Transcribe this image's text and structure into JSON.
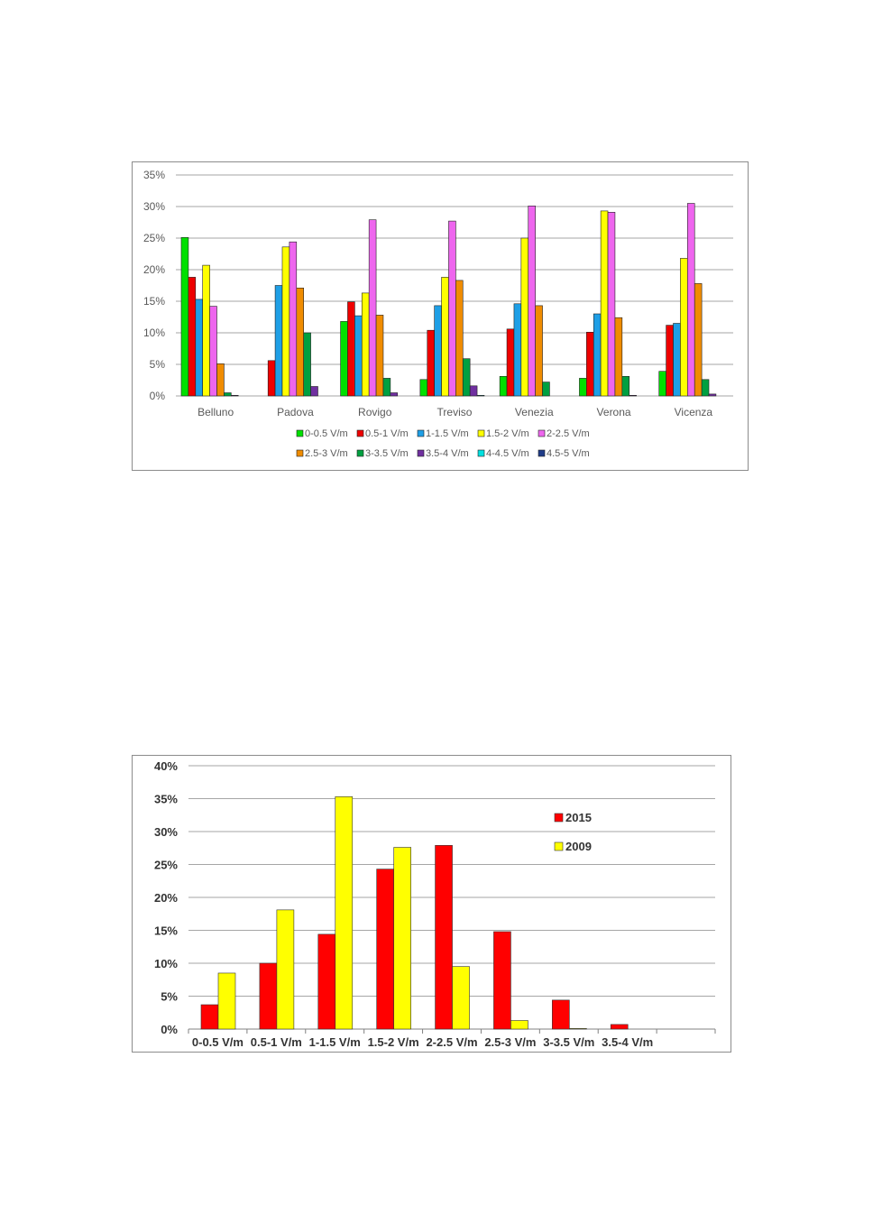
{
  "chart_data": [
    {
      "type": "bar",
      "title": "",
      "xlabel": "",
      "ylabel": "",
      "ylim": [
        0,
        35
      ],
      "y_ticks": [
        "0%",
        "5%",
        "10%",
        "15%",
        "20%",
        "25%",
        "30%",
        "35%"
      ],
      "grid": true,
      "legend_position": "bottom",
      "categories": [
        "Belluno",
        "Padova",
        "Rovigo",
        "Treviso",
        "Venezia",
        "Verona",
        "Vicenza"
      ],
      "series": [
        {
          "name": "0-0.5 V/m",
          "color": "#00e000",
          "values": [
            25.1,
            0,
            11.8,
            2.6,
            3.1,
            2.8,
            3.9
          ]
        },
        {
          "name": "0.5-1 V/m",
          "color": "#ee0000",
          "values": [
            18.8,
            5.6,
            14.9,
            10.4,
            10.6,
            10.1,
            11.2
          ]
        },
        {
          "name": "1-1.5 V/m",
          "color": "#1e9fe6",
          "values": [
            15.3,
            17.5,
            12.7,
            14.3,
            14.6,
            13.0,
            11.5
          ]
        },
        {
          "name": "1.5-2 V/m",
          "color": "#ffff00",
          "values": [
            20.7,
            23.6,
            16.3,
            18.8,
            25.0,
            29.3,
            21.8
          ]
        },
        {
          "name": "2-2.5 V/m",
          "color": "#ee66ee",
          "values": [
            14.2,
            24.4,
            27.9,
            27.7,
            30.1,
            29.1,
            30.5
          ]
        },
        {
          "name": "2.5-3 V/m",
          "color": "#f08c00",
          "values": [
            5.1,
            17.1,
            12.8,
            18.3,
            14.3,
            12.4,
            17.8
          ]
        },
        {
          "name": "3-3.5 V/m",
          "color": "#00a040",
          "values": [
            0.5,
            10.0,
            2.8,
            5.9,
            2.2,
            3.1,
            2.6
          ]
        },
        {
          "name": "3.5-4 V/m",
          "color": "#7030a0",
          "values": [
            0.1,
            1.5,
            0.5,
            1.6,
            0,
            0.1,
            0.3
          ]
        },
        {
          "name": "4-4.5 V/m",
          "color": "#00e0e0",
          "values": [
            0,
            0,
            0,
            0.1,
            0,
            0,
            0
          ]
        },
        {
          "name": "4.5-5 V/m",
          "color": "#1f3c88",
          "values": [
            0,
            0,
            0,
            0,
            0,
            0,
            0
          ]
        }
      ]
    },
    {
      "type": "bar",
      "title": "",
      "xlabel": "",
      "ylabel": "",
      "ylim": [
        0,
        40
      ],
      "y_ticks": [
        "0%",
        "5%",
        "10%",
        "15%",
        "20%",
        "25%",
        "30%",
        "35%",
        "40%"
      ],
      "grid": true,
      "legend_position": "right",
      "categories": [
        "0-0.5 V/m",
        "0.5-1 V/m",
        "1-1.5 V/m",
        "1.5-2 V/m",
        "2-2.5 V/m",
        "2.5-3 V/m",
        "3-3.5 V/m",
        "3.5-4 V/m",
        ""
      ],
      "series": [
        {
          "name": "2015",
          "color": "#ff0000",
          "values": [
            3.7,
            10.0,
            14.4,
            24.3,
            27.9,
            14.8,
            4.4,
            0.7,
            0
          ]
        },
        {
          "name": "2009",
          "color": "#ffff00",
          "values": [
            8.5,
            18.1,
            35.3,
            27.6,
            9.5,
            1.3,
            0.1,
            0,
            0
          ]
        }
      ]
    }
  ]
}
